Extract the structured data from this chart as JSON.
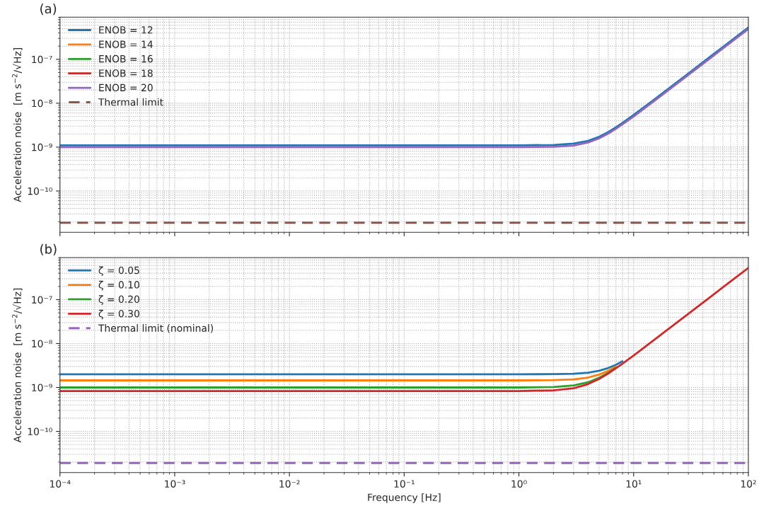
{
  "chart_data": [
    {
      "type": "line",
      "title": "(a)",
      "ylabel": "Acceleration noise  [m s$^{−2}$/√Hz]",
      "log": "xy",
      "grid": true,
      "legend": "top left",
      "tick_labels": "y",
      "line_style": "solid",
      "marker": "none",
      "x": [
        0.0001,
        0.001,
        0.01,
        0.1,
        1,
        2,
        3,
        4,
        5,
        6,
        7,
        8,
        10,
        15,
        20,
        30,
        50,
        70,
        100
      ],
      "xlim": [
        0.0001,
        100
      ],
      "xticks": [
        {
          "value": 0.0001,
          "label": null
        },
        {
          "value": 0.001,
          "label": null
        },
        {
          "value": 0.01,
          "label": null
        },
        {
          "value": 0.1,
          "label": null
        },
        {
          "value": 1,
          "label": null
        },
        {
          "value": 10,
          "label": null
        },
        {
          "value": 100,
          "label": null
        }
      ],
      "ylim": [
        1.15e-11,
        9.1e-07
      ],
      "yticks": [
        {
          "value": 1e-10,
          "label": "10⁻¹⁰"
        },
        {
          "value": 1e-09,
          "label": "10⁻⁹"
        },
        {
          "value": 1e-08,
          "label": "10⁻⁸"
        },
        {
          "value": 1e-07,
          "label": "10⁻⁷"
        }
      ],
      "series": [
        {
          "name": "ENOB = 12",
          "color": "#1f77b4",
          "values": [
            1.1e-09,
            1.1e-09,
            1.1e-09,
            1.1e-09,
            1.1e-09,
            1.12e-09,
            1.2e-09,
            1.39e-09,
            1.72e-09,
            2.2e-09,
            2.82e-09,
            3.56e-09,
            5.41e-09,
            1.195e-08,
            2.12e-08,
            4.77e-08,
            1.325e-07,
            2.6e-07,
            5.3e-07
          ]
        },
        {
          "name": "ENOB = 14",
          "color": "#ff7f0e",
          "values": [
            null,
            null,
            null,
            null,
            null,
            null,
            null,
            null,
            null,
            null,
            null,
            null,
            null,
            null,
            null,
            null,
            null,
            null,
            null
          ]
        },
        {
          "name": "ENOB = 16",
          "color": "#2ca02c",
          "values": [
            null,
            null,
            null,
            null,
            null,
            null,
            null,
            null,
            null,
            null,
            null,
            null,
            null,
            null,
            null,
            null,
            null,
            null,
            null
          ]
        },
        {
          "name": "ENOB = 18",
          "color": "#d62728",
          "values": [
            null,
            null,
            null,
            null,
            null,
            null,
            null,
            null,
            null,
            null,
            null,
            null,
            null,
            null,
            null,
            null,
            null,
            null,
            null
          ]
        },
        {
          "name": "ENOB = 20",
          "color": "#9467bd",
          "values": [
            1e-09,
            1e-09,
            1e-09,
            1e-09,
            1e-09,
            1.02e-09,
            1.09e-09,
            1.27e-09,
            1.58e-09,
            2.03e-09,
            2.6e-09,
            3.3e-09,
            5e-09,
            1.105e-08,
            1.96e-08,
            4.41e-08,
            1.225e-07,
            2.4e-07,
            4.9e-07
          ]
        }
      ],
      "ref_lines": [
        {
          "axis": "y",
          "value": 1.9e-11,
          "label": "Thermal limit",
          "color": "#8c564b",
          "line_style": "dashed"
        }
      ]
    },
    {
      "type": "line",
      "title": "(b)",
      "xlabel": "Frequency [Hz]",
      "ylabel": "Acceleration noise  [m s$^{−2}$/√Hz]",
      "log": "xy",
      "grid": true,
      "legend": "top left",
      "line_style": "solid",
      "marker": "none",
      "x": [
        0.0001,
        0.001,
        0.01,
        0.1,
        1,
        2,
        3,
        4,
        5,
        6,
        7,
        8,
        10,
        15,
        20,
        30,
        50,
        70,
        100
      ],
      "xlim": [
        0.0001,
        100
      ],
      "xticks": [
        {
          "value": 0.0001,
          "label": "10⁻⁴"
        },
        {
          "value": 0.001,
          "label": "10⁻³"
        },
        {
          "value": 0.01,
          "label": "10⁻²"
        },
        {
          "value": 0.1,
          "label": "10⁻¹"
        },
        {
          "value": 1,
          "label": "10⁰"
        },
        {
          "value": 10,
          "label": "10¹"
        },
        {
          "value": 100,
          "label": "10²"
        }
      ],
      "ylim": [
        1.15e-11,
        9.1e-07
      ],
      "yticks": [
        {
          "value": 1e-10,
          "label": "10⁻¹⁰"
        },
        {
          "value": 1e-09,
          "label": "10⁻⁹"
        },
        {
          "value": 1e-08,
          "label": "10⁻⁸"
        },
        {
          "value": 1e-07,
          "label": "10⁻⁷"
        }
      ],
      "series": [
        {
          "name": "ζ = 0.05",
          "color": "#1f77b4",
          "values": [
            2e-09,
            2e-09,
            2e-09,
            2e-09,
            2e-09,
            2.01e-09,
            2.06e-09,
            2.17e-09,
            2.4e-09,
            2.77e-09,
            3.28e-09,
            3.94e-09,
            null,
            null,
            null,
            null,
            null,
            null,
            null
          ]
        },
        {
          "name": "ζ = 0.10",
          "color": "#ff7f0e",
          "values": [
            1.45e-09,
            1.45e-09,
            1.45e-09,
            1.45e-09,
            1.45e-09,
            1.47e-09,
            1.53e-09,
            1.68e-09,
            1.96e-09,
            2.4e-09,
            2.98e-09,
            null,
            null,
            null,
            null,
            null,
            null,
            null,
            null
          ]
        },
        {
          "name": "ζ = 0.20",
          "color": "#2ca02c",
          "values": [
            1e-09,
            1e-09,
            1e-09,
            1e-09,
            1e-09,
            1.02e-09,
            1.11e-09,
            1.31e-09,
            1.66e-09,
            2.16e-09,
            2.79e-09,
            null,
            null,
            null,
            null,
            null,
            null,
            null,
            null
          ]
        },
        {
          "name": "ζ = 0.30",
          "color": "#d62728",
          "values": [
            8.3e-10,
            8.3e-10,
            8.3e-10,
            8.3e-10,
            8.3e-10,
            8.57e-10,
            9.58e-10,
            1.19e-09,
            1.56e-09,
            2.08e-09,
            2.73e-09,
            3.49e-09,
            5.36e-09,
            1.193e-08,
            2.12e-08,
            4.77e-08,
            1.325e-07,
            2.6e-07,
            5.3e-07
          ]
        }
      ],
      "ref_lines": [
        {
          "axis": "y",
          "value": 1.9e-11,
          "label": "Thermal limit (nominal)",
          "color": "#9467bd",
          "line_style": "dashed"
        }
      ]
    }
  ]
}
